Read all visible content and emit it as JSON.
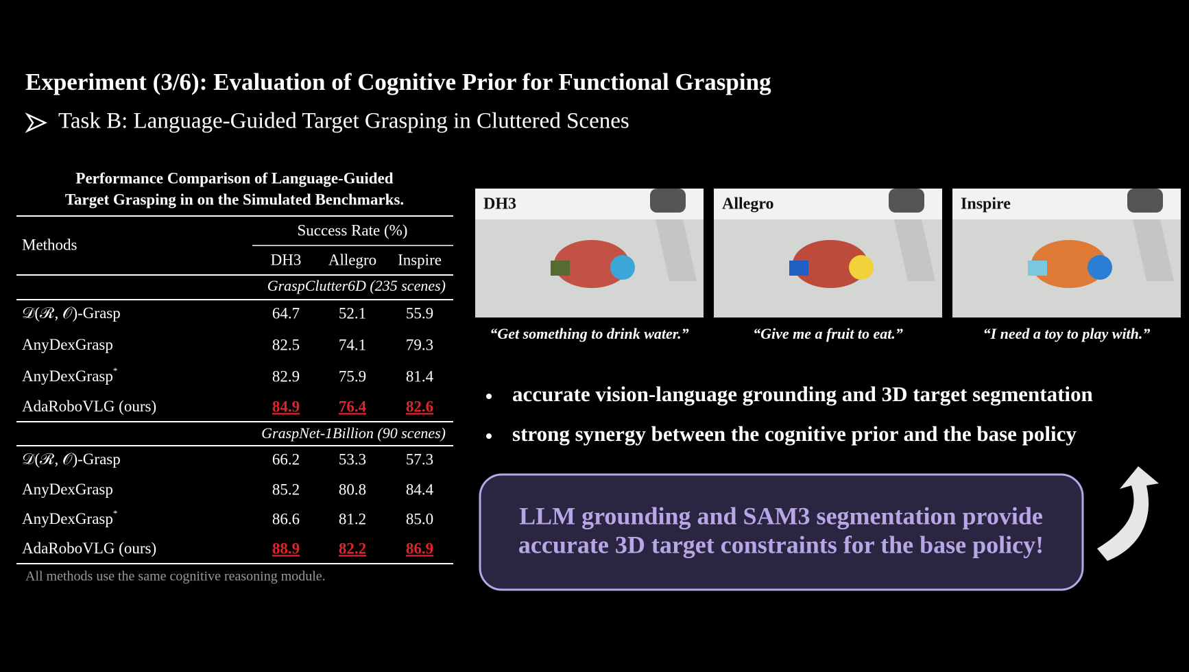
{
  "header": {
    "title": "Experiment (3/6): Evaluation of Cognitive Prior for Functional Grasping",
    "subtitle": "Task B: Language-Guided Target Grasping in Cluttered Scenes"
  },
  "table": {
    "caption": [
      "Performance Comparison of Language-Guided",
      "Target Grasping in on the Simulated Benchmarks."
    ],
    "methods_header": "Methods",
    "group_header": "Success Rate (%)",
    "columns": [
      "DH3",
      "Allegro",
      "Inspire"
    ],
    "sections": [
      {
        "label": "GraspClutter6D (235 scenes)",
        "rows": [
          {
            "method": "𝒟(ℛ, 𝒪)-Grasp",
            "values": [
              "64.7",
              "52.1",
              "55.9"
            ]
          },
          {
            "method": "AnyDexGrasp",
            "values": [
              "82.5",
              "74.1",
              "79.3"
            ]
          },
          {
            "method": "AnyDexGrasp",
            "sup": "*",
            "values": [
              "82.9",
              "75.9",
              "81.4"
            ]
          },
          {
            "method": "AdaRoboVLG (ours)",
            "values": [
              "84.9",
              "76.4",
              "82.6"
            ],
            "highlight": true
          }
        ]
      },
      {
        "label": "GraspNet-1Billion (90 scenes)",
        "rows": [
          {
            "method": "𝒟(ℛ, 𝒪)-Grasp",
            "values": [
              "66.2",
              "53.3",
              "57.3"
            ]
          },
          {
            "method": "AnyDexGrasp",
            "values": [
              "85.2",
              "80.8",
              "84.4"
            ]
          },
          {
            "method": "AnyDexGrasp",
            "sup": "*",
            "values": [
              "86.6",
              "81.2",
              "85.0"
            ]
          },
          {
            "method": "AdaRoboVLG (ours)",
            "values": [
              "88.9",
              "82.2",
              "86.9"
            ],
            "highlight": true
          }
        ]
      }
    ],
    "footnote": "All methods use the same cognitive reasoning module."
  },
  "panels": [
    {
      "label": "DH3",
      "caption": "“Get something to drink water.”"
    },
    {
      "label": "Allegro",
      "caption": "“Give me a fruit to eat.”"
    },
    {
      "label": "Inspire",
      "caption": "“I need a toy to play with.”"
    }
  ],
  "bullets": [
    "accurate vision-language grounding and 3D target segmentation",
    "strong synergy between the cognitive prior and the base policy"
  ],
  "callout": [
    "LLM grounding and SAM3 segmentation provide",
    "accurate 3D target constraints for the base policy!"
  ]
}
